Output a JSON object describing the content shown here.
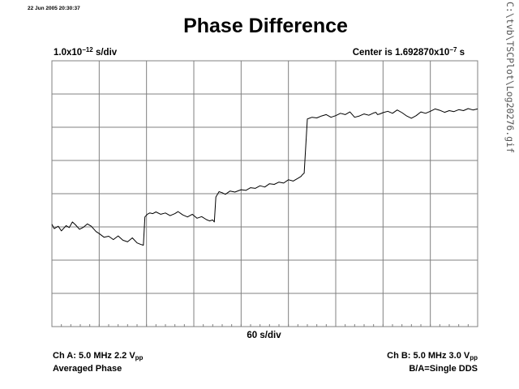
{
  "header": {
    "timestamp": "22 Jun 2005 20:30:37",
    "title": "Phase Difference",
    "y_scale": {
      "mantissa": "1.0x10",
      "exp": "−12",
      "unit": " s/div"
    },
    "center": {
      "prefix": "Center is 1.692870x10",
      "exp": "−7",
      "unit": " s"
    }
  },
  "footer": {
    "x_scale": "60 s/div",
    "channel_a": {
      "line1_main": "Ch A: 5.0 MHz 2.2 V",
      "line1_sub": "pp",
      "line2": "Averaged Phase"
    },
    "channel_b": {
      "line1_main": "Ch B: 5.0 MHz 3.0 V",
      "line1_sub": "pp",
      "line2": "B/A=Single DDS"
    }
  },
  "side_label": "C:\\tvb\\TSCPlot\\Log20276.gif",
  "colors": {
    "trace": "#000000",
    "grid": "#808080",
    "background": "#ffffff"
  },
  "chart_data": {
    "type": "line",
    "title": "Phase Difference",
    "x_divisions": 9,
    "y_divisions": 8,
    "x_units_per_div": 60,
    "x_unit": "s",
    "y_units_per_div": 1e-12,
    "y_unit": "s",
    "y_center": 1.69287e-07,
    "x_range": [
      0,
      540
    ],
    "y_range_divs": [
      -4,
      4
    ],
    "grid": true,
    "series": [
      {
        "x": [
          0,
          3,
          8,
          12,
          18,
          22,
          26,
          30,
          35,
          40,
          45,
          50,
          56,
          60,
          66,
          72,
          78,
          84,
          90,
          96,
          102,
          108,
          112,
          116,
          118,
          121,
          124,
          128,
          132,
          138,
          144,
          150,
          156,
          160,
          166,
          172,
          178,
          184,
          190,
          196,
          200,
          204,
          206,
          208,
          212,
          216,
          220,
          226,
          232,
          240,
          246,
          252,
          258,
          264,
          270,
          276,
          282,
          288,
          294,
          300,
          306,
          312,
          316,
          318,
          320,
          324,
          330,
          336,
          342,
          348,
          354,
          360,
          366,
          372,
          378,
          384,
          390,
          396,
          402,
          408,
          411,
          413,
          416,
          420,
          426,
          432,
          438,
          444,
          450,
          456,
          462,
          468,
          474,
          480,
          486,
          492,
          498,
          504,
          510,
          516,
          522,
          528,
          534,
          540
        ],
        "y": [
          -0.92,
          -1.05,
          -0.98,
          -1.12,
          -0.96,
          -1.02,
          -0.85,
          -0.94,
          -1.07,
          -1.01,
          -0.91,
          -0.98,
          -1.14,
          -1.2,
          -1.31,
          -1.28,
          -1.38,
          -1.27,
          -1.4,
          -1.45,
          -1.33,
          -1.48,
          -1.52,
          -1.55,
          -0.7,
          -0.62,
          -0.58,
          -0.6,
          -0.55,
          -0.62,
          -0.58,
          -0.66,
          -0.6,
          -0.54,
          -0.64,
          -0.7,
          -0.62,
          -0.74,
          -0.69,
          -0.78,
          -0.82,
          -0.79,
          -0.85,
          -0.1,
          0.06,
          0.03,
          -0.02,
          0.08,
          0.05,
          0.12,
          0.1,
          0.18,
          0.16,
          0.24,
          0.2,
          0.3,
          0.28,
          0.35,
          0.32,
          0.42,
          0.38,
          0.46,
          0.52,
          0.58,
          0.62,
          2.25,
          2.3,
          2.28,
          2.34,
          2.38,
          2.3,
          2.35,
          2.42,
          2.38,
          2.46,
          2.3,
          2.34,
          2.4,
          2.36,
          2.43,
          2.45,
          2.38,
          2.4,
          2.44,
          2.48,
          2.42,
          2.52,
          2.44,
          2.34,
          2.27,
          2.35,
          2.46,
          2.42,
          2.48,
          2.55,
          2.51,
          2.45,
          2.5,
          2.47,
          2.53,
          2.5,
          2.56,
          2.52,
          2.55
        ]
      }
    ]
  }
}
